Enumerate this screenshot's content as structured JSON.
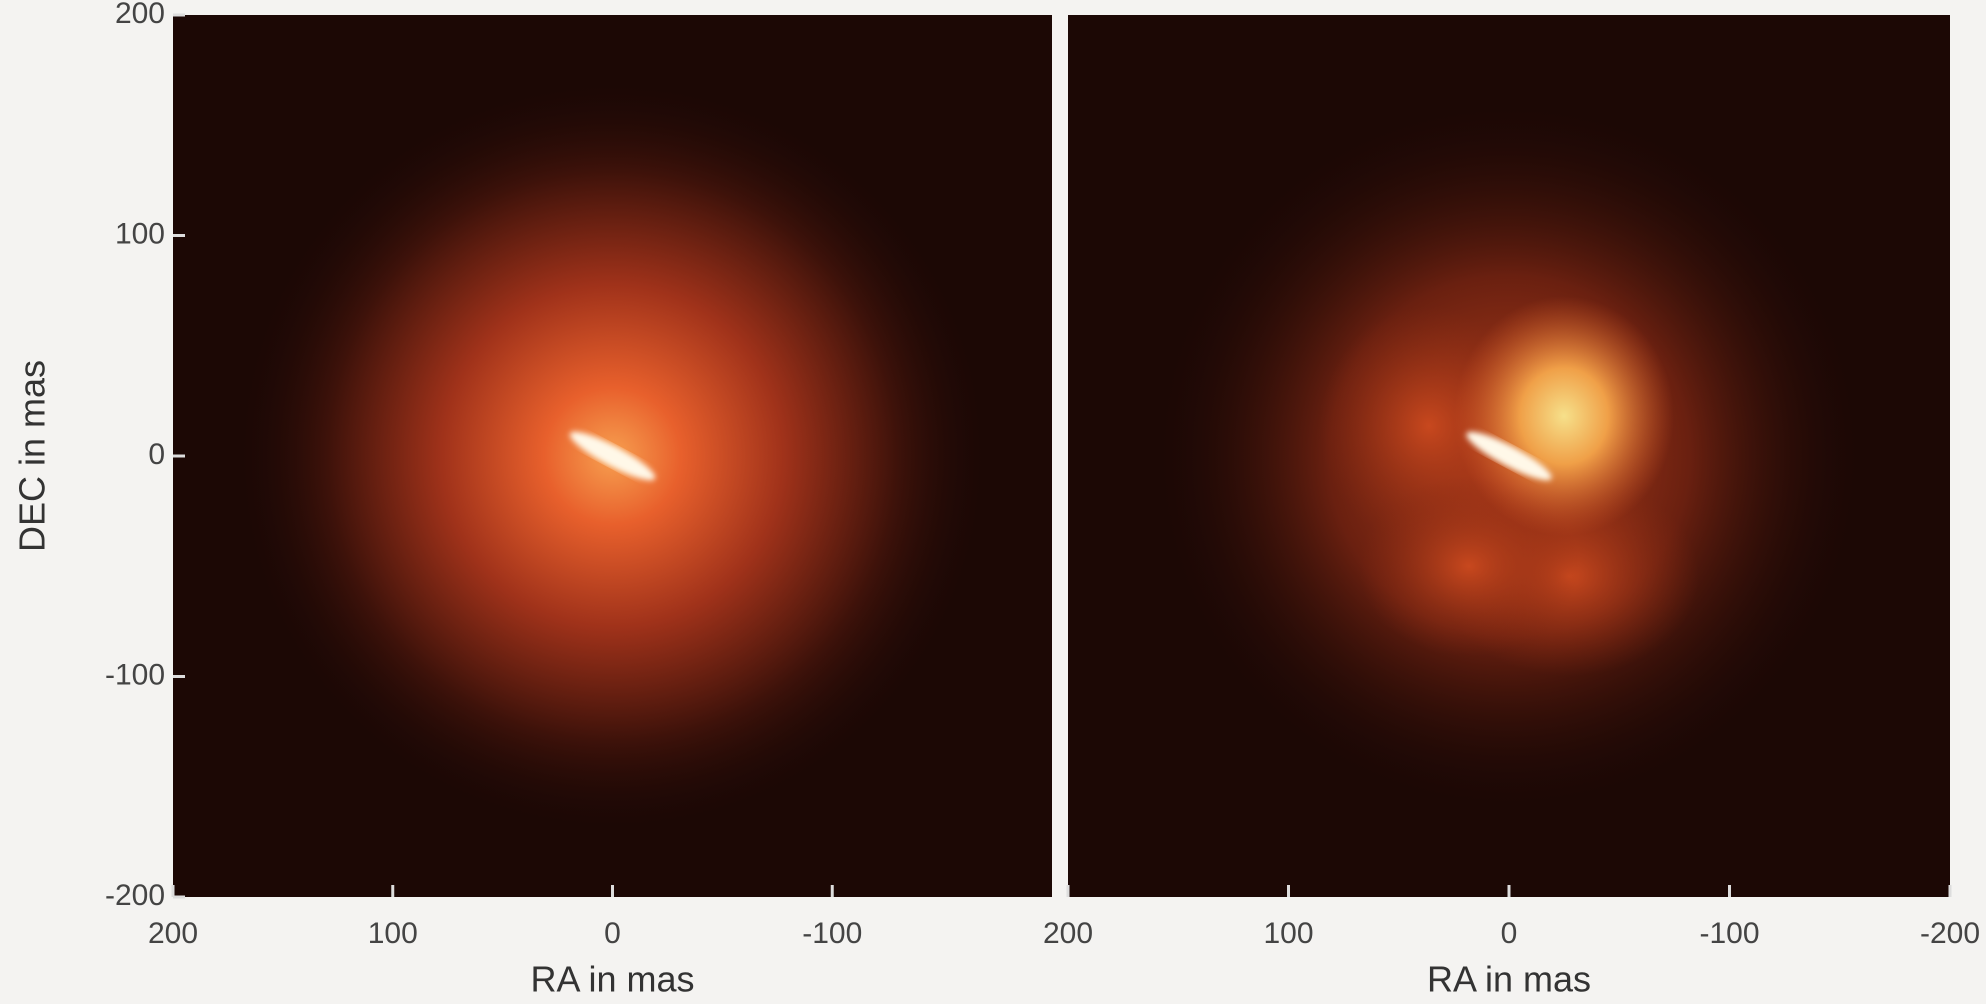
{
  "chart_data": [
    {
      "type": "image",
      "xlabel": "RA in mas",
      "ylabel": "DEC in mas",
      "xlim": [
        200,
        -200
      ],
      "ylim": [
        -200,
        200
      ],
      "xticks": [
        200,
        100,
        0,
        -100
      ],
      "yticks": [
        -200,
        -100,
        0,
        100,
        200
      ]
    },
    {
      "type": "image",
      "xlabel": "RA in mas",
      "xlim": [
        200,
        -200
      ],
      "ylim": [
        -200,
        200
      ],
      "xticks": [
        200,
        100,
        0,
        -100,
        -200
      ]
    }
  ]
}
